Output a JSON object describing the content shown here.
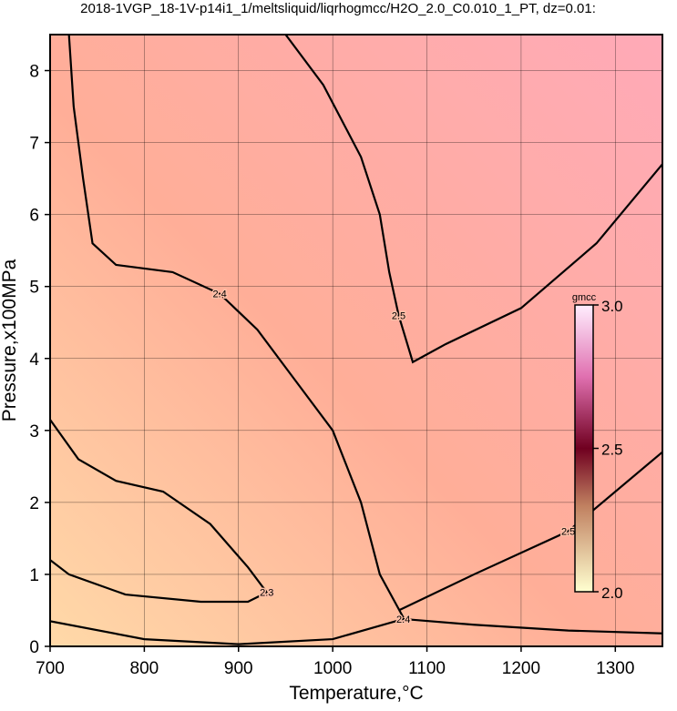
{
  "chart_data": {
    "type": "contour",
    "title": "2018-1VGP_18-1V-p14i1_1/meltsliquid/liqrhogmcc/H2O_2.0_C0.010_1_PT, dz=0.01:",
    "x_label": "Temperature,°C",
    "y_label": "Pressure,x100MPa",
    "xlim": [
      700,
      1350
    ],
    "ylim": [
      0,
      8.5
    ],
    "xticks": [
      700,
      800,
      900,
      1000,
      1100,
      1200,
      1300
    ],
    "yticks": [
      0,
      1,
      2,
      3,
      4,
      5,
      6,
      7,
      8
    ],
    "grid": true,
    "contours": [
      {
        "level": 2.3,
        "x": [
          700,
          730,
          770,
          820,
          870,
          910,
          930,
          910,
          860,
          780,
          720,
          700
        ],
        "y": [
          3.15,
          2.6,
          2.3,
          2.15,
          1.7,
          1.1,
          0.75,
          0.62,
          0.62,
          0.72,
          1.0,
          1.2
        ]
      },
      {
        "level": 2.4,
        "x": [
          720,
          725,
          735,
          745,
          770,
          830,
          880,
          920,
          960,
          1000,
          1030,
          1050,
          1075
        ],
        "y": [
          8.5,
          7.5,
          6.5,
          5.6,
          5.3,
          5.2,
          4.9,
          4.4,
          3.7,
          3.0,
          2.0,
          1.0,
          0.4
        ]
      },
      {
        "level": 2.4,
        "x": [
          700,
          800,
          900,
          1000,
          1075,
          1150,
          1250,
          1350
        ],
        "y": [
          0.35,
          0.1,
          0.03,
          0.1,
          0.38,
          0.3,
          0.22,
          0.18
        ]
      },
      {
        "level": 2.5,
        "x": [
          950,
          990,
          1030,
          1050,
          1060,
          1070,
          1085,
          1120,
          1200,
          1280,
          1350
        ],
        "y": [
          8.5,
          7.8,
          6.8,
          6.0,
          5.2,
          4.6,
          3.95,
          4.2,
          4.7,
          5.6,
          6.7
        ]
      },
      {
        "level": 2.5,
        "x": [
          1070,
          1150,
          1250,
          1350
        ],
        "y": [
          0.5,
          1.0,
          1.6,
          2.7
        ]
      }
    ],
    "colorbar": {
      "label": "gmcc",
      "lim": [
        2.0,
        3.0
      ],
      "ticks": [
        {
          "value": 2.0,
          "label": "2.0"
        },
        {
          "value": 2.5,
          "label": "2.5"
        },
        {
          "value": 3.0,
          "label": "3.0"
        }
      ]
    }
  }
}
